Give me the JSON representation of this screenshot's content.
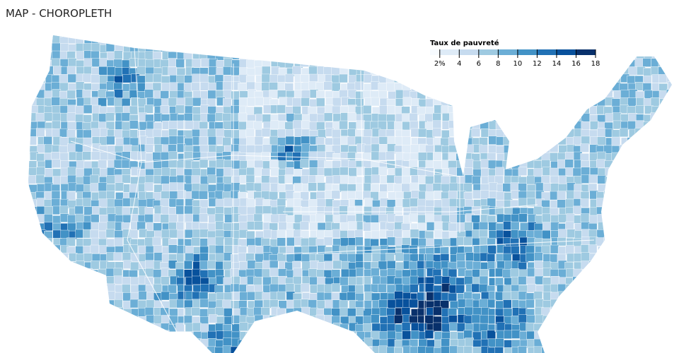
{
  "title": "MAP - CHOROPLETH",
  "legend": {
    "title": "Taux de pauvreté",
    "xlim": [
      1,
      18
    ],
    "ticks": [
      {
        "value": 2,
        "label": "2%"
      },
      4,
      6,
      8,
      10,
      12,
      14,
      16,
      18
    ],
    "colors": [
      "#f7fbff",
      "#deebf7",
      "#c6dbef",
      "#9ecae1",
      "#6baed6",
      "#4292c6",
      "#2171b5",
      "#08519c",
      "#08306b"
    ]
  }
}
